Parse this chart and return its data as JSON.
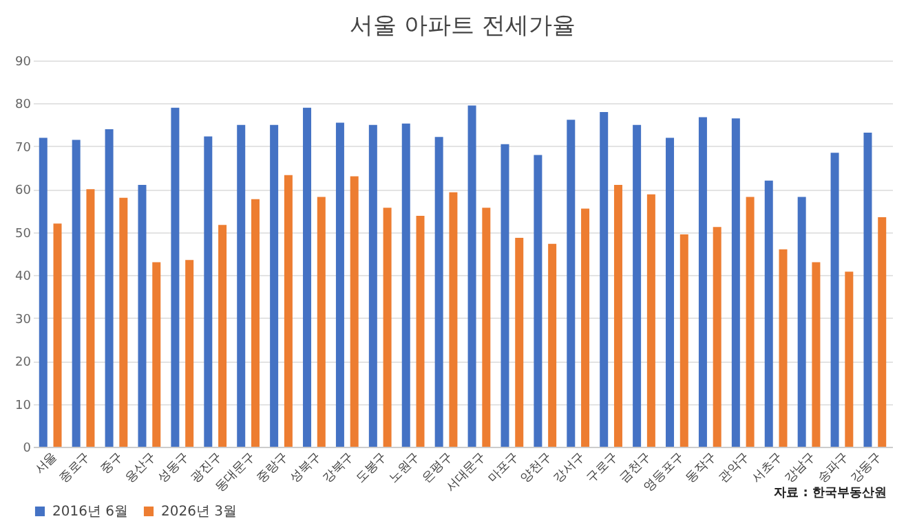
{
  "chart_data": {
    "type": "bar",
    "title": "서울 아파트 전세가율",
    "categories": [
      "서울",
      "종로구",
      "중구",
      "용산구",
      "성동구",
      "광진구",
      "동대문구",
      "중랑구",
      "성북구",
      "강북구",
      "도봉구",
      "노원구",
      "은평구",
      "서대문구",
      "마포구",
      "양천구",
      "강서구",
      "구로구",
      "금천구",
      "영등포구",
      "동작구",
      "관악구",
      "서초구",
      "강남구",
      "송파구",
      "강동구"
    ],
    "series": [
      {
        "name": "2016년 6월",
        "color": "#4472c4",
        "values": [
          72,
          71.5,
          74,
          61,
          79,
          72.3,
          75,
          75,
          79,
          75.5,
          75,
          75.3,
          72.2,
          79.5,
          70.5,
          68,
          76.2,
          78,
          75,
          72,
          76.8,
          76.5,
          62,
          58.2,
          68.5,
          73.2
        ]
      },
      {
        "name": "2026년 3월",
        "color": "#ed7d31",
        "values": [
          52,
          60,
          58,
          43,
          43.5,
          51.7,
          57.7,
          63.3,
          58.2,
          63,
          55.7,
          53.8,
          59.3,
          55.7,
          48.7,
          47.3,
          55.5,
          61,
          58.8,
          49.5,
          51.2,
          58.2,
          46,
          43,
          40.8,
          53.5
        ]
      }
    ],
    "ylim": [
      0,
      90
    ],
    "yticks": [
      0,
      10,
      20,
      30,
      40,
      50,
      60,
      70,
      80,
      90
    ],
    "grid": "y",
    "legend": "bottom",
    "annotations": [
      "자료 : 한국부동산원"
    ]
  }
}
